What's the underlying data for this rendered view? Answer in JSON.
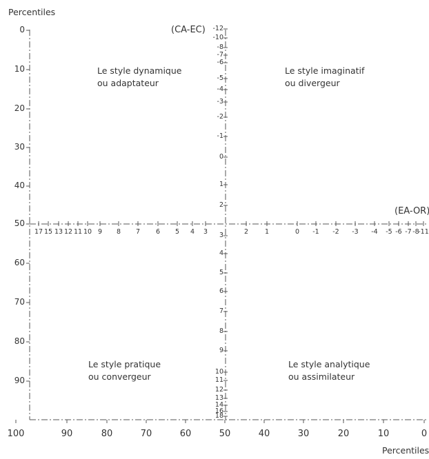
{
  "left_axis": {
    "title": "Percentiles",
    "ticks": [
      "0",
      "10",
      "20",
      "30",
      "40",
      "50",
      "60",
      "70",
      "80",
      "90"
    ]
  },
  "bottom_axis": {
    "title": "Percentiles",
    "ticks": [
      "100",
      "90",
      "80",
      "70",
      "60",
      "50",
      "40",
      "30",
      "20",
      "10",
      "0"
    ]
  },
  "vertical_axis": {
    "label": "(CA-EC)",
    "ticks_top": [
      "-12",
      "-10",
      "-8",
      "-7",
      "-6",
      "-5",
      "-4",
      "-3",
      "-2",
      "-1",
      "0",
      "1",
      "2",
      "3"
    ],
    "ticks_bottom": [
      "4",
      "5",
      "6",
      "7",
      "8",
      "9",
      "10",
      "11",
      "12",
      "13",
      "14",
      "16",
      "18"
    ]
  },
  "horizontal_axis": {
    "label": "(EA-OR)",
    "ticks_left": [
      "17",
      "15",
      "13",
      "12",
      "11",
      "10",
      "9",
      "8",
      "7",
      "6",
      "5",
      "4",
      "3"
    ],
    "ticks_right": [
      "2",
      "1",
      "0",
      "-1",
      "-2",
      "-3",
      "-4",
      "-5",
      "-6",
      "-7",
      "-8",
      "-11"
    ]
  },
  "quadrants": {
    "top_left": {
      "line1": "Le style dynamique",
      "line2": "ou adaptateur"
    },
    "top_right": {
      "line1": "Le style imaginatif",
      "line2": "ou divergeur"
    },
    "bottom_left": {
      "line1": "Le style pratique",
      "line2": "ou convergeur"
    },
    "bottom_right": {
      "line1": "Le style analytique",
      "line2": "ou assimilateur"
    }
  },
  "colors": {
    "ink": "#555555",
    "text": "#333333"
  }
}
